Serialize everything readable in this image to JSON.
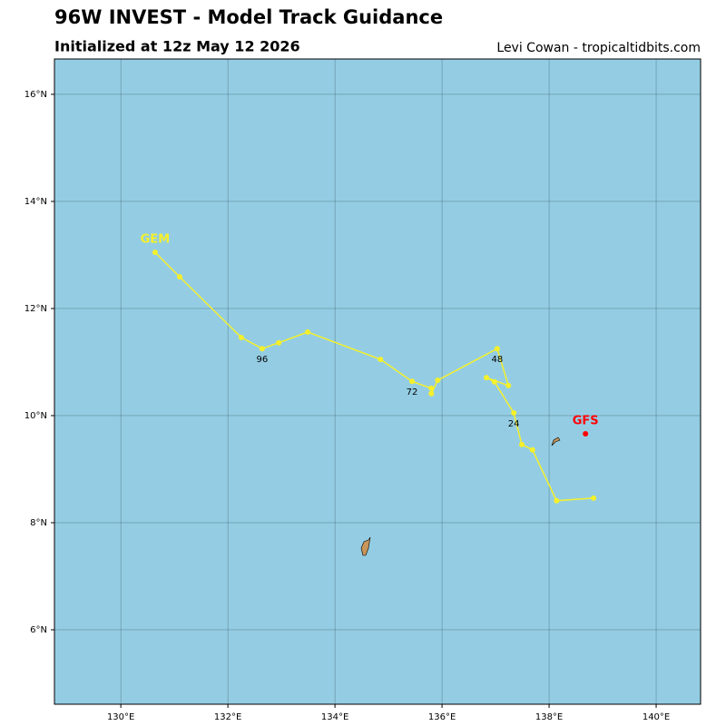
{
  "chart_data": {
    "type": "track",
    "title": "96W INVEST - Model Track Guidance",
    "subtitle": "Initialized at 12z May 12 2026",
    "credit": "Levi Cowan - tropicaltidbits.com",
    "background": "#94cde3",
    "grid": true,
    "xlim": [
      128.76,
      140.83
    ],
    "ylim": [
      4.61,
      16.66
    ],
    "xticks": [
      {
        "value": 130,
        "label": "130°E"
      },
      {
        "value": 132,
        "label": "132°E"
      },
      {
        "value": 134,
        "label": "134°E"
      },
      {
        "value": 136,
        "label": "136°E"
      },
      {
        "value": 138,
        "label": "138°E"
      },
      {
        "value": 140,
        "label": "140°E"
      }
    ],
    "yticks": [
      {
        "value": 6,
        "label": "6°N"
      },
      {
        "value": 8,
        "label": "8°N"
      },
      {
        "value": 10,
        "label": "10°N"
      },
      {
        "value": 12,
        "label": "12°N"
      },
      {
        "value": 14,
        "label": "14°N"
      },
      {
        "value": 16,
        "label": "16°N"
      }
    ],
    "series": [
      {
        "name": "GEM",
        "color": "#f5f02b",
        "lon": [
          138.83,
          138.14,
          137.69,
          137.49,
          137.34,
          136.98,
          136.83,
          137.24,
          137.03,
          135.92,
          135.8,
          135.8,
          135.44,
          134.85,
          133.49,
          132.95,
          132.64,
          132.25,
          131.1,
          130.64
        ],
        "lat": [
          8.46,
          8.41,
          9.36,
          9.46,
          10.05,
          10.63,
          10.71,
          10.56,
          11.25,
          10.66,
          10.41,
          10.51,
          10.64,
          11.05,
          11.56,
          11.36,
          11.25,
          11.46,
          12.59,
          13.05
        ],
        "point_labels": [
          null,
          null,
          null,
          null,
          "24",
          null,
          null,
          null,
          "48",
          null,
          null,
          null,
          "72",
          null,
          null,
          null,
          "96",
          null,
          null,
          null
        ]
      },
      {
        "name": "GFS",
        "color": "#ff0000",
        "lon": [
          138.68
        ],
        "lat": [
          9.66
        ],
        "point_labels": [
          null
        ]
      }
    ]
  }
}
